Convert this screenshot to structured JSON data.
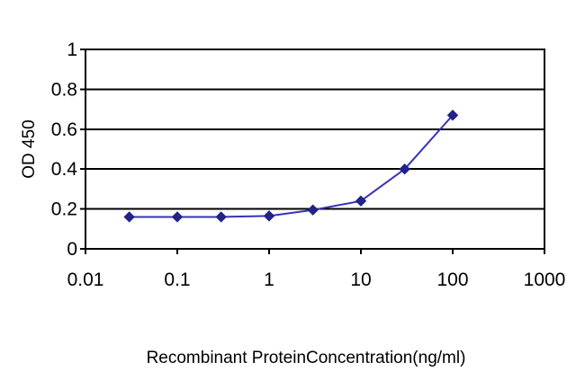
{
  "figure": {
    "background": "#ffffff",
    "grid_color": "#000000",
    "border_color": "#000000",
    "text_color": "#000000"
  },
  "chart_data": {
    "type": "line",
    "title": "",
    "xlabel": "Recombinant ProteinConcentration(ng/ml)",
    "ylabel": "OD 450",
    "x_scale": "log",
    "xlim": [
      0.01,
      1000
    ],
    "ylim": [
      0,
      1
    ],
    "x_tick_labels": [
      "0.01",
      "0.1",
      "1",
      "10",
      "100",
      "1000"
    ],
    "x_tick_values": [
      0.01,
      0.1,
      1,
      10,
      100,
      1000
    ],
    "y_tick_labels": [
      "0",
      "0.2",
      "0.4",
      "0.6",
      "0.8",
      "1"
    ],
    "y_tick_values": [
      0,
      0.2,
      0.4,
      0.6,
      0.8,
      1
    ],
    "grid": "horizontal-major",
    "legend_position": "none",
    "series": [
      {
        "name": "OD 450",
        "line_color": "#3434b8",
        "marker": "diamond",
        "marker_color": "#222288",
        "x": [
          0.03,
          0.1,
          0.3,
          1,
          3,
          10,
          30,
          100
        ],
        "y": [
          0.16,
          0.16,
          0.16,
          0.165,
          0.195,
          0.24,
          0.4,
          0.67
        ]
      }
    ]
  }
}
